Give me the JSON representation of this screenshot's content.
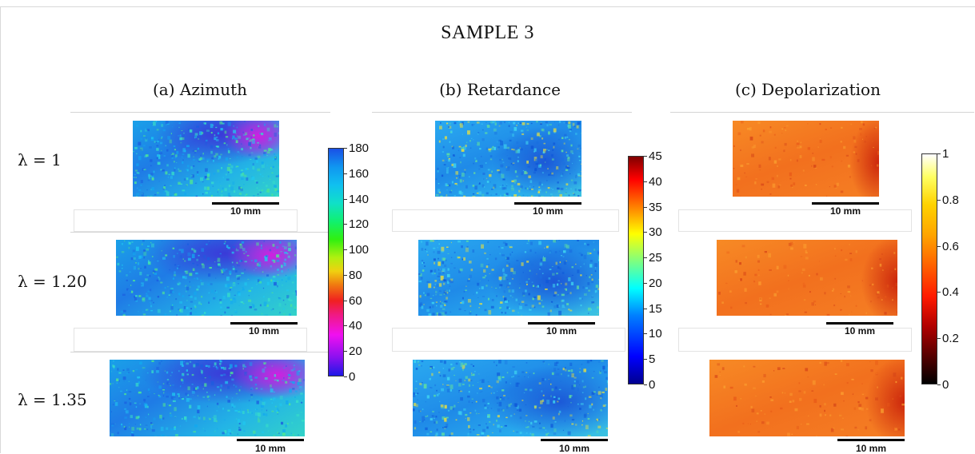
{
  "title": "SAMPLE 3",
  "columns": [
    {
      "id": "azimuth",
      "label": "(a) Azimuth"
    },
    {
      "id": "retardance",
      "label": "(b) Retardance"
    },
    {
      "id": "depolarization",
      "label": "(c) Depolarization"
    }
  ],
  "rows": [
    {
      "label": "λ = 1"
    },
    {
      "label": "λ = 1.20"
    },
    {
      "label": "λ = 1.35"
    }
  ],
  "scale_label": "10 mm",
  "colorbars": {
    "azimuth": {
      "min": 0,
      "max": 180,
      "ticks": [
        "180",
        "160",
        "140",
        "120",
        "100",
        "80",
        "60",
        "40",
        "20",
        "0"
      ]
    },
    "retardance": {
      "min": 0,
      "max": 45,
      "ticks": [
        "45",
        "40",
        "35",
        "30",
        "25",
        "20",
        "15",
        "10",
        "5",
        "0"
      ]
    },
    "depolarization": {
      "min": 0,
      "max": 1,
      "ticks": [
        "1",
        "0.8",
        "0.6",
        "0.4",
        "0.2",
        "0"
      ]
    }
  },
  "colors": {
    "azimuth_accent": "#1f7be6",
    "retardance_accent": "#2aaaf0",
    "depolarization_accent": "#f2701e"
  }
}
